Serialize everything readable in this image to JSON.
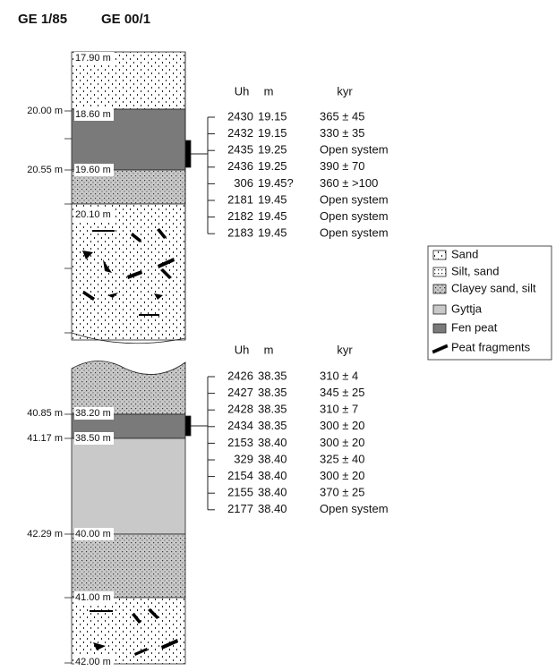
{
  "headers": [
    "GE 1/85",
    "GE 00/1"
  ],
  "upper": {
    "outer_depths": [
      "20.00 m",
      "20.55 m"
    ],
    "inner_depths": [
      "17.90 m",
      "18.60 m",
      "19.60 m",
      "20.10 m"
    ],
    "table": {
      "columns": [
        "Uh",
        "m",
        "kyr"
      ],
      "rows": [
        [
          "2430",
          "19.15",
          "365 ± 45"
        ],
        [
          "2432",
          "19.15",
          "330 ± 35"
        ],
        [
          "2435",
          "19.25",
          "Open system"
        ],
        [
          "2436",
          "19.25",
          "390 ± 70"
        ],
        [
          "306",
          "19.45?",
          "360 ± >100"
        ],
        [
          "2181",
          "19.45",
          "Open system"
        ],
        [
          "2182",
          "19.45",
          "Open system"
        ],
        [
          "2183",
          "19.45",
          "Open system"
        ]
      ]
    }
  },
  "lower": {
    "outer_depths": [
      "40.85 m",
      "41.17 m",
      "42.29 m"
    ],
    "inner_depths": [
      "38.20 m",
      "38.50 m",
      "40.00 m",
      "41.00 m",
      "42.00 m"
    ],
    "table": {
      "columns": [
        "Uh",
        "m",
        "kyr"
      ],
      "rows": [
        [
          "2426",
          "38.35",
          "310 ± 4"
        ],
        [
          "2427",
          "38.35",
          "345 ± 25"
        ],
        [
          "2428",
          "38.35",
          "310 ± 7"
        ],
        [
          "2434",
          "38.35",
          "300 ± 20"
        ],
        [
          "2153",
          "38.40",
          "300 ± 20"
        ],
        [
          "329",
          "38.40",
          "325 ± 40"
        ],
        [
          "2154",
          "38.40",
          "300 ± 20"
        ],
        [
          "2155",
          "38.40",
          "370 ± 25"
        ],
        [
          "2177",
          "38.40",
          "Open system"
        ]
      ]
    }
  },
  "legend": [
    "Sand",
    "Silt, sand",
    "Clayey sand, silt",
    "Gyttja",
    "Fen peat",
    "Peat fragments"
  ]
}
